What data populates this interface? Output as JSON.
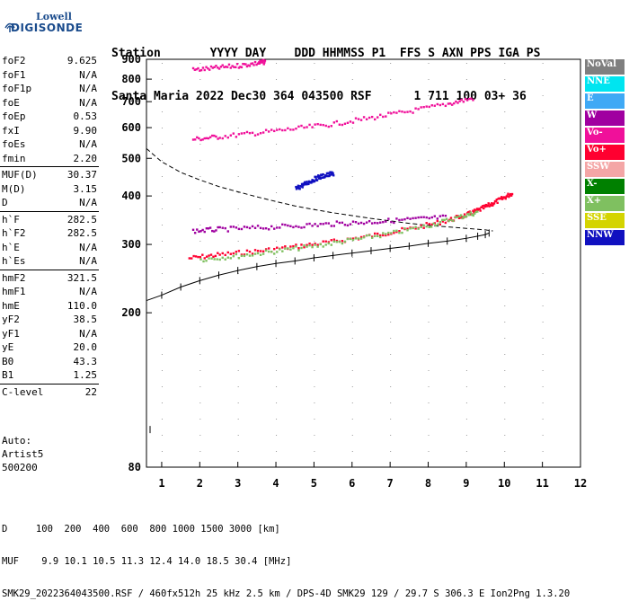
{
  "logo": {
    "line1": "Lowell",
    "line2": "DIGISONDE"
  },
  "header": {
    "row1": "Station       YYYY DAY    DDD HHMMSS P1  FFS S AXN PPS IGA PS",
    "row2": "Santa Maria 2022 Dec30 364 043500 RSF      1 711 100 03+ 36"
  },
  "params": [
    {
      "label": "foF2",
      "value": "9.625"
    },
    {
      "label": "foF1",
      "value": "N/A"
    },
    {
      "label": "foF1p",
      "value": "N/A"
    },
    {
      "label": "foE",
      "value": "N/A"
    },
    {
      "label": "foEp",
      "value": "0.53"
    },
    {
      "label": "fxI",
      "value": "9.90"
    },
    {
      "label": "foEs",
      "value": "N/A"
    },
    {
      "label": "fmin",
      "value": "2.20"
    },
    {
      "label": "MUF(D)",
      "value": "30.37",
      "sep": true
    },
    {
      "label": "M(D)",
      "value": "3.15"
    },
    {
      "label": "D",
      "value": "N/A"
    },
    {
      "label": "h`F",
      "value": "282.5",
      "sep": true
    },
    {
      "label": "h`F2",
      "value": "282.5"
    },
    {
      "label": "h`E",
      "value": "N/A"
    },
    {
      "label": "h`Es",
      "value": "N/A"
    },
    {
      "label": "hmF2",
      "value": "321.5",
      "sep": true
    },
    {
      "label": "hmF1",
      "value": "N/A"
    },
    {
      "label": "hmE",
      "value": "110.0"
    },
    {
      "label": "yF2",
      "value": "38.5"
    },
    {
      "label": "yF1",
      "value": "N/A"
    },
    {
      "label": "yE",
      "value": "20.0"
    },
    {
      "label": "B0",
      "value": "43.3"
    },
    {
      "label": "B1",
      "value": "1.25"
    },
    {
      "label": "C-level",
      "value": "22",
      "sep": true
    }
  ],
  "notes": [
    "Auto:",
    "Artist5",
    "500200"
  ],
  "legend": [
    {
      "label": "NoVal",
      "color": "#7f7f7f"
    },
    {
      "label": "NNE",
      "color": "#00e5f0"
    },
    {
      "label": "E",
      "color": "#3fa9f5"
    },
    {
      "label": "W",
      "color": "#a000a0"
    },
    {
      "label": "Vo-",
      "color": "#f0109a"
    },
    {
      "label": "Vo+",
      "color": "#ff0030"
    },
    {
      "label": "SSW",
      "color": "#f4a6a6"
    },
    {
      "label": "X-",
      "color": "#008000"
    },
    {
      "label": "X+",
      "color": "#7fc060"
    },
    {
      "label": "SSE",
      "color": "#d4d400"
    },
    {
      "label": "NNW",
      "color": "#1010c0"
    }
  ],
  "footer": {
    "row1": "D     100  200  400  600  800 1000 1500 3000 [km]",
    "row2": "MUF    9.9 10.1 10.5 11.3 12.4 14.0 18.5 30.4 [MHz]",
    "row3": "SMK29_2022364043500.RSF / 460fx512h 25 kHz 2.5 km / DPS-4D SMK29 129 / 29.7 S 306.3 E Ion2Png 1.3.20"
  },
  "chart_data": {
    "type": "scatter",
    "xlim": [
      0.6,
      12
    ],
    "ylim": [
      80,
      900
    ],
    "y_scale": "log",
    "x_ticks": [
      1,
      2,
      3,
      4,
      5,
      6,
      7,
      8,
      9,
      10,
      11,
      12
    ],
    "y_ticks": [
      80,
      200,
      300,
      400,
      500,
      600,
      700,
      800,
      900
    ],
    "traces": [
      {
        "name": "O-trace F2",
        "color": "#ff0030",
        "x": [
          1.7,
          2.5,
          3.5,
          4.5,
          5.5,
          6.5,
          7.5,
          8.5,
          9.0,
          9.3,
          9.6,
          9.9,
          10.2
        ],
        "y": [
          278,
          284,
          290,
          298,
          307,
          318,
          331,
          348,
          360,
          370,
          382,
          395,
          410
        ]
      },
      {
        "name": "X-trace F2",
        "color": "#7fc060",
        "x": [
          2.0,
          3.0,
          4.0,
          5.0,
          6.0,
          7.0,
          8.0,
          8.8,
          9.3
        ],
        "y": [
          276,
          282,
          290,
          299,
          310,
          322,
          338,
          355,
          366
        ]
      },
      {
        "name": "Multi-hop 2F",
        "color": "#f0109a",
        "x": [
          1.8,
          2.5,
          3.5,
          4.5,
          5.5,
          6.5,
          7.5,
          8.5,
          9.2
        ],
        "y": [
          563,
          572,
          585,
          600,
          617,
          640,
          665,
          695,
          720
        ]
      },
      {
        "name": "Multi-hop 3F",
        "color": "#f0109a",
        "x": [
          1.8,
          2.4,
          3.0,
          3.5,
          3.7
        ],
        "y": [
          850,
          860,
          872,
          885,
          893
        ]
      },
      {
        "name": "Oblique W",
        "color": "#a000a0",
        "x": [
          1.8,
          2.5,
          3.5,
          4.5,
          5.5,
          6.5,
          7.5,
          8.5
        ],
        "y": [
          327,
          330,
          333,
          337,
          341,
          345,
          350,
          355
        ]
      },
      {
        "name": "NNW spread",
        "color": "#1010c0",
        "x": [
          4.5,
          4.7,
          4.9,
          5.1,
          5.3,
          5.5
        ],
        "y": [
          420,
          430,
          440,
          450,
          455,
          460
        ]
      }
    ],
    "profile": {
      "name": "Electron density profile",
      "x": [
        0.6,
        1.0,
        1.5,
        2.0,
        2.5,
        3.0,
        3.5,
        4.0,
        4.5,
        5.0,
        5.5,
        6.0,
        6.5,
        7.0,
        7.5,
        8.0,
        8.5,
        9.0,
        9.3,
        9.5,
        9.6
      ],
      "y": [
        215,
        222,
        233,
        242,
        250,
        257,
        263,
        268,
        272,
        277,
        281,
        285,
        289,
        293,
        297,
        302,
        306,
        311,
        315,
        318,
        321
      ]
    },
    "profile_start": {
      "x": 0.6,
      "y": 100
    },
    "model_curve": {
      "name": "Model curve",
      "x": [
        0.6,
        1.0,
        1.5,
        2.0,
        2.5,
        3.0,
        3.5,
        4.0,
        4.5,
        5.0,
        5.5,
        6.0,
        6.5,
        7.0,
        7.5,
        8.0,
        8.5,
        9.0,
        9.5,
        9.7
      ],
      "y": [
        530,
        490,
        460,
        440,
        423,
        410,
        398,
        387,
        377,
        369,
        362,
        356,
        350,
        345,
        340,
        336,
        333,
        330,
        327,
        325
      ]
    }
  }
}
